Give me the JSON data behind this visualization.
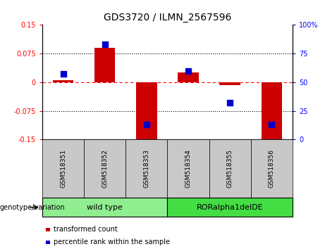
{
  "title": "GDS3720 / ILMN_2567596",
  "samples": [
    "GSM518351",
    "GSM518352",
    "GSM518353",
    "GSM518354",
    "GSM518355",
    "GSM518356"
  ],
  "red_values": [
    0.005,
    0.09,
    -0.155,
    0.025,
    -0.008,
    -0.155
  ],
  "blue_values": [
    57,
    83,
    13,
    60,
    32,
    13
  ],
  "ylim_left": [
    -0.15,
    0.15
  ],
  "ylim_right": [
    0,
    100
  ],
  "yticks_left": [
    -0.15,
    -0.075,
    0,
    0.075,
    0.15
  ],
  "yticks_right": [
    0,
    25,
    50,
    75,
    100
  ],
  "ytick_labels_left": [
    "-0.15",
    "-0.075",
    "0",
    "0.075",
    "0.15"
  ],
  "ytick_labels_right": [
    "0",
    "25",
    "50",
    "75",
    "100%"
  ],
  "genotype_label": "genotype/variation",
  "legend_items": [
    {
      "label": "transformed count",
      "color": "#CC0000"
    },
    {
      "label": "percentile rank within the sample",
      "color": "#0000CC"
    }
  ],
  "bar_color": "#CC0000",
  "dot_color": "#0000CC",
  "bar_width": 0.5,
  "dot_size": 40,
  "group_bg_wt": "#90EE90",
  "group_bg_ror": "#44DD44",
  "sample_bg": "#C8C8C8",
  "title_fontsize": 10,
  "tick_fontsize": 7,
  "sample_fontsize": 6.5,
  "group_fontsize": 8,
  "legend_fontsize": 7,
  "geno_fontsize": 7
}
